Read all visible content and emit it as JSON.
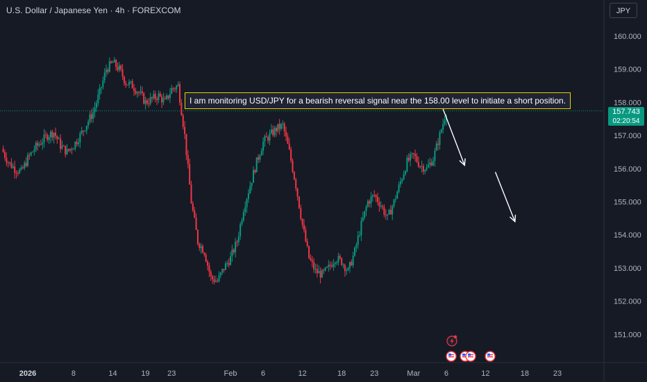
{
  "header": {
    "symbol_title": "U.S. Dollar / Japanese Yen · 4h · FOREXCOM",
    "currency": "JPY"
  },
  "annotation": {
    "text": "I am monitoring USD/JPY for a bearish reversal signal near the 158.00 level to initiate a short position."
  },
  "price_tag": {
    "price": "157.743",
    "countdown": "02:20:54"
  },
  "colors": {
    "background": "#161a25",
    "up_candle": "#089981",
    "down_candle": "#f23645",
    "annotation_border": "#e6d500",
    "axis_text": "#b2b5be"
  },
  "chart_data": {
    "type": "candlestick",
    "title": "U.S. Dollar / Japanese Yen · 4h · FOREXCOM",
    "ylim": [
      150.5,
      160.8
    ],
    "y_ticks": [
      "160.000",
      "159.000",
      "158.000",
      "157.000",
      "156.000",
      "155.000",
      "154.000",
      "153.000",
      "152.000",
      "151.000"
    ],
    "x_ticks": [
      {
        "label": "2026",
        "day": 0,
        "bold": true
      },
      {
        "label": "8",
        "day": 7
      },
      {
        "label": "14",
        "day": 13
      },
      {
        "label": "19",
        "day": 18
      },
      {
        "label": "23",
        "day": 22
      },
      {
        "label": "Feb",
        "day": 31
      },
      {
        "label": "6",
        "day": 36
      },
      {
        "label": "12",
        "day": 42
      },
      {
        "label": "18",
        "day": 48
      },
      {
        "label": "23",
        "day": 53
      },
      {
        "label": "Mar",
        "day": 59
      },
      {
        "label": "6",
        "day": 64
      },
      {
        "label": "12",
        "day": 70
      },
      {
        "label": "18",
        "day": 76
      },
      {
        "label": "23",
        "day": 81
      }
    ],
    "last_price": 157.743,
    "price_path": [
      [
        -4,
        156.6
      ],
      [
        -3,
        156.2
      ],
      [
        -2,
        156.0
      ],
      [
        -1,
        155.9
      ],
      [
        0,
        156.3
      ],
      [
        1,
        156.6
      ],
      [
        2,
        156.8
      ],
      [
        3,
        157.0
      ],
      [
        4,
        157.1
      ],
      [
        5,
        156.7
      ],
      [
        6,
        156.5
      ],
      [
        7,
        156.7
      ],
      [
        8,
        157.0
      ],
      [
        10,
        157.7
      ],
      [
        11,
        158.3
      ],
      [
        12,
        159.0
      ],
      [
        13,
        159.2
      ],
      [
        14,
        159.0
      ],
      [
        15,
        158.6
      ],
      [
        16,
        158.5
      ],
      [
        17,
        158.3
      ],
      [
        18,
        158.0
      ],
      [
        19,
        158.1
      ],
      [
        20,
        158.2
      ],
      [
        21,
        158.0
      ],
      [
        22,
        158.4
      ],
      [
        23,
        158.5
      ],
      [
        24,
        157.0
      ],
      [
        25,
        155.0
      ],
      [
        26,
        153.8
      ],
      [
        27,
        153.5
      ],
      [
        28,
        152.7
      ],
      [
        29,
        152.6
      ],
      [
        30,
        153.0
      ],
      [
        31,
        153.3
      ],
      [
        32,
        153.8
      ],
      [
        33,
        154.8
      ],
      [
        34,
        155.5
      ],
      [
        35,
        156.2
      ],
      [
        36,
        156.8
      ],
      [
        37,
        157.0
      ],
      [
        38,
        157.2
      ],
      [
        39,
        157.3
      ],
      [
        40,
        156.5
      ],
      [
        41,
        155.5
      ],
      [
        42,
        154.3
      ],
      [
        43,
        153.3
      ],
      [
        44,
        152.9
      ],
      [
        45,
        152.8
      ],
      [
        46,
        153.0
      ],
      [
        47,
        153.3
      ],
      [
        48,
        153.2
      ],
      [
        49,
        152.9
      ],
      [
        50,
        153.5
      ],
      [
        51,
        154.3
      ],
      [
        52,
        155.0
      ],
      [
        53,
        155.2
      ],
      [
        54,
        154.9
      ],
      [
        55,
        154.5
      ],
      [
        56,
        155.0
      ],
      [
        57,
        155.6
      ],
      [
        58,
        156.2
      ],
      [
        59,
        156.4
      ],
      [
        60,
        156.1
      ],
      [
        61,
        156.0
      ],
      [
        62,
        156.3
      ],
      [
        63,
        157.0
      ],
      [
        64,
        157.74
      ]
    ],
    "arrows": [
      {
        "from": [
          63.5,
          157.8
        ],
        "to": [
          66.8,
          156.1
        ]
      },
      {
        "from": [
          71.5,
          155.9
        ],
        "to": [
          74.5,
          154.4
        ]
      }
    ],
    "event_markers": [
      "flash-icon",
      "us-flag-icon",
      "us-flag-icon",
      "us-flag-icon",
      "us-flag-icon"
    ]
  }
}
